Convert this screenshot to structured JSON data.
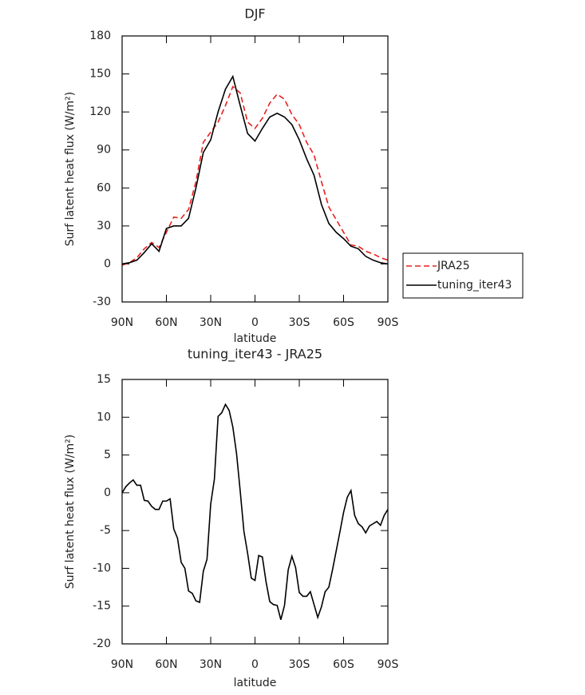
{
  "chart_data": [
    {
      "type": "line",
      "title": "DJF",
      "x_label": "latitude",
      "y_label": "Surf latent heat flux (W/m²)",
      "x": [
        90,
        85,
        80,
        75,
        70,
        65,
        60,
        55,
        50,
        45,
        40,
        35,
        30,
        25,
        20,
        15,
        10,
        5,
        0,
        -5,
        -10,
        -15,
        -20,
        -25,
        -30,
        -35,
        -40,
        -45,
        -50,
        -55,
        -60,
        -65,
        -70,
        -75,
        -80,
        -85,
        -90
      ],
      "series": [
        {
          "name": "JRA25",
          "color": "#e8201e",
          "dash": "dashed",
          "values": [
            -1,
            1,
            5,
            12,
            17,
            13,
            25,
            37,
            36,
            43,
            65,
            96,
            104,
            112,
            125,
            140,
            135,
            112,
            107,
            115,
            127,
            134,
            130,
            118,
            110,
            96,
            86,
            65,
            45,
            35,
            25,
            15,
            14,
            10,
            8,
            5,
            3
          ]
        },
        {
          "name": "tuning_iter43",
          "color": "#000000",
          "dash": "solid",
          "values": [
            0,
            1,
            3,
            9,
            16,
            10,
            28,
            30,
            30,
            36,
            60,
            88,
            98,
            120,
            138,
            148,
            125,
            103,
            97,
            107,
            116,
            119,
            116,
            110,
            98,
            83,
            70,
            47,
            32,
            25,
            20,
            14,
            12,
            6,
            3,
            1,
            0
          ]
        }
      ],
      "xlim": [
        90,
        -90
      ],
      "xticks": [
        {
          "value": 90,
          "label": "90N"
        },
        {
          "value": 60,
          "label": "60N"
        },
        {
          "value": 30,
          "label": "30N"
        },
        0,
        {
          "value": -30,
          "label": "30S"
        },
        {
          "value": -60,
          "label": "60S"
        },
        {
          "value": -90,
          "label": "90S"
        }
      ],
      "ylim": [
        -30,
        180
      ],
      "yticks": [
        -30,
        0,
        30,
        60,
        90,
        120,
        150,
        180
      ],
      "legend": "outside-right",
      "grid": false
    },
    {
      "type": "line",
      "title": "tuning_iter43 - JRA25",
      "x_label": "latitude",
      "y_label": "Surf latent heat flux (W/m²)",
      "x": [
        90,
        87.5,
        85,
        82.5,
        80,
        77.5,
        75,
        72.5,
        70,
        67.5,
        65,
        62.5,
        60,
        57.5,
        55,
        52.5,
        50,
        47.5,
        45,
        42.5,
        40,
        37.5,
        35,
        32.5,
        30,
        27.5,
        25,
        22.5,
        20,
        17.5,
        15,
        12.5,
        10,
        7.5,
        5,
        2.5,
        0,
        -2.5,
        -5,
        -7.5,
        -10,
        -12.5,
        -15,
        -17.5,
        -20,
        -22.5,
        -25,
        -27.5,
        -30,
        -32.5,
        -35,
        -37.5,
        -40,
        -42.5,
        -45,
        -47.5,
        -50,
        -52.5,
        -55,
        -57.5,
        -60,
        -62.5,
        -65,
        -67.5,
        -70,
        -72.5,
        -75,
        -77.5,
        -80,
        -82.5,
        -85,
        -87.5,
        -90
      ],
      "values": [
        0,
        0.8,
        1.3,
        1.7,
        1.0,
        1.0,
        -1.0,
        -1.1,
        -1.8,
        -2.2,
        -2.2,
        -1.1,
        -1.1,
        -0.8,
        -4.8,
        -6.0,
        -9.2,
        -10.0,
        -13.0,
        -13.3,
        -14.3,
        -14.5,
        -10.4,
        -8.8,
        -1.5,
        1.8,
        10.1,
        10.6,
        11.7,
        10.9,
        8.7,
        5.2,
        0.2,
        -5.1,
        -8.0,
        -11.3,
        -11.6,
        -8.3,
        -8.5,
        -11.8,
        -14.4,
        -14.8,
        -14.9,
        -16.8,
        -14.9,
        -10.2,
        -8.4,
        -9.9,
        -13.2,
        -13.7,
        -13.7,
        -13.1,
        -14.8,
        -16.5,
        -15.1,
        -13.1,
        -12.5,
        -10.2,
        -7.7,
        -5.2,
        -2.6,
        -0.6,
        0.3,
        -3.0,
        -4.1,
        -4.5,
        -5.3,
        -4.4,
        -4.1,
        -3.8,
        -4.3,
        -3.0,
        -2.2
      ],
      "color": "#000000",
      "xlim": [
        90,
        -90
      ],
      "xticks": [
        {
          "value": 90,
          "label": "90N"
        },
        {
          "value": 60,
          "label": "60N"
        },
        {
          "value": 30,
          "label": "30N"
        },
        0,
        {
          "value": -30,
          "label": "30S"
        },
        {
          "value": -60,
          "label": "60S"
        },
        {
          "value": -90,
          "label": "90S"
        }
      ],
      "ylim": [
        -20,
        15
      ],
      "yticks": [
        -20,
        -15,
        -10,
        -5,
        0,
        5,
        10,
        15
      ],
      "grid": false
    }
  ]
}
